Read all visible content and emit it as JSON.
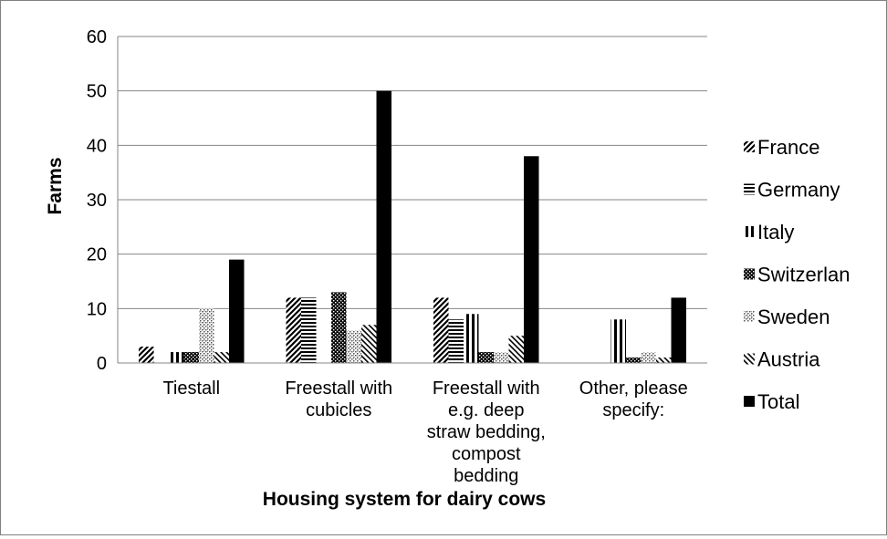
{
  "chart_data": {
    "type": "bar",
    "title": "",
    "xlabel": "Housing system for dairy cows",
    "ylabel": "Farms",
    "ylim": [
      0,
      60
    ],
    "yticks": [
      0,
      10,
      20,
      30,
      40,
      50,
      60
    ],
    "grid": true,
    "legend_position": "right",
    "categories": [
      [
        "Tiestall"
      ],
      [
        "Freestall with",
        "cubicles"
      ],
      [
        "Freestall with",
        "e.g. deep",
        "straw bedding,",
        "compost",
        "bedding"
      ],
      [
        "Other, please",
        "specify:"
      ]
    ],
    "series": [
      {
        "name": "France",
        "pattern": "diag-fwd",
        "values": [
          3,
          12,
          12,
          0
        ]
      },
      {
        "name": "Germany",
        "pattern": "horizontal",
        "values": [
          0,
          12,
          8,
          0
        ]
      },
      {
        "name": "Italy",
        "pattern": "vertical",
        "values": [
          2,
          0,
          9,
          8
        ]
      },
      {
        "name": "Switzerlan",
        "pattern": "checker",
        "values": [
          2,
          13,
          2,
          1
        ]
      },
      {
        "name": "Sweden",
        "pattern": "dots",
        "values": [
          10,
          6,
          2,
          2
        ]
      },
      {
        "name": "Austria",
        "pattern": "diag-back",
        "values": [
          2,
          7,
          5,
          1
        ]
      },
      {
        "name": "Total",
        "pattern": "solid",
        "values": [
          19,
          50,
          38,
          12
        ]
      }
    ]
  }
}
